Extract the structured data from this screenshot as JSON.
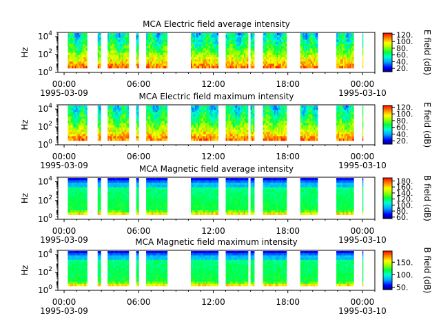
{
  "chart_data": [
    {
      "type": "heatmap",
      "title": "MCA  Electric field average intensity",
      "ylabel": "Hz",
      "ylim": [
        1,
        30000
      ],
      "yscale": "log",
      "yticks": [
        "10^0",
        "10^2",
        "10^4"
      ],
      "xticks": [
        "00:00",
        "06:00",
        "12:00",
        "18:00",
        "00:00"
      ],
      "xdates": [
        "1995-03-09",
        "1995-03-10"
      ],
      "colorbar_label": "E field (dB)",
      "colorbar_ticks": [
        "20.",
        "40.",
        "60.",
        "80.",
        "100.",
        "120."
      ],
      "clim": [
        10,
        125
      ],
      "data_intervals_hours": [
        [
          0.3,
          1.85
        ],
        [
          2.7,
          2.95
        ],
        [
          3.5,
          5.2
        ],
        [
          5.8,
          6.0
        ],
        [
          6.6,
          8.3
        ],
        [
          10.2,
          12.4
        ],
        [
          13.0,
          14.8
        ],
        [
          15.0,
          15.3
        ],
        [
          16.0,
          17.9
        ],
        [
          19.0,
          20.4
        ],
        [
          21.9,
          23.3
        ],
        [
          24.0,
          24.05
        ]
      ],
      "data_freq_range_hz": [
        3,
        25000
      ],
      "palette": "rainbow"
    },
    {
      "type": "heatmap",
      "title": "MCA  Electric field maximum intensity",
      "ylabel": "Hz",
      "ylim": [
        1,
        30000
      ],
      "yscale": "log",
      "yticks": [
        "10^0",
        "10^2",
        "10^4"
      ],
      "xticks": [
        "00:00",
        "06:00",
        "12:00",
        "18:00",
        "00:00"
      ],
      "xdates": [
        "1995-03-09",
        "1995-03-10"
      ],
      "colorbar_label": "E field (dB)",
      "colorbar_ticks": [
        "20.",
        "40.",
        "60.",
        "80.",
        "100.",
        "120."
      ],
      "clim": [
        10,
        125
      ],
      "data_intervals_hours": [
        [
          0.3,
          1.85
        ],
        [
          2.7,
          2.95
        ],
        [
          3.5,
          5.2
        ],
        [
          5.8,
          6.0
        ],
        [
          6.6,
          8.3
        ],
        [
          10.2,
          12.4
        ],
        [
          13.0,
          14.8
        ],
        [
          15.0,
          15.3
        ],
        [
          16.0,
          17.9
        ],
        [
          19.0,
          20.4
        ],
        [
          21.9,
          23.3
        ],
        [
          24.0,
          24.05
        ]
      ],
      "data_freq_range_hz": [
        3,
        25000
      ],
      "palette": "rainbow"
    },
    {
      "type": "heatmap",
      "title": "MCA  Magnetic field average intensity",
      "ylabel": "Hz",
      "ylim": [
        1,
        30000
      ],
      "yscale": "log",
      "yticks": [
        "10^0",
        "10^2",
        "10^4"
      ],
      "xticks": [
        "00:00",
        "06:00",
        "12:00",
        "18:00",
        "00:00"
      ],
      "xdates": [
        "1995-03-09",
        "1995-03-10"
      ],
      "colorbar_label": "B field (dB)",
      "colorbar_ticks": [
        "60.",
        "80.",
        "100.",
        "120.",
        "140.",
        "160.",
        "180."
      ],
      "clim": [
        55,
        190
      ],
      "data_intervals_hours": [
        [
          0.3,
          1.85
        ],
        [
          2.7,
          2.95
        ],
        [
          3.5,
          5.2
        ],
        [
          5.8,
          6.0
        ],
        [
          6.6,
          8.3
        ],
        [
          10.2,
          12.4
        ],
        [
          13.0,
          14.8
        ],
        [
          15.0,
          15.3
        ],
        [
          16.0,
          17.9
        ],
        [
          19.0,
          20.4
        ],
        [
          21.9,
          23.3
        ],
        [
          24.0,
          24.05
        ]
      ],
      "data_freq_range_hz": [
        3,
        25000
      ],
      "palette": "rainbow"
    },
    {
      "type": "heatmap",
      "title": "MCA  Magnetic field maximum intensity",
      "ylabel": "Hz",
      "ylim": [
        1,
        30000
      ],
      "yscale": "log",
      "yticks": [
        "10^0",
        "10^2",
        "10^4"
      ],
      "xticks": [
        "00:00",
        "06:00",
        "12:00",
        "18:00",
        "00:00"
      ],
      "xdates": [
        "1995-03-09",
        "1995-03-10"
      ],
      "colorbar_label": "B field (dB)",
      "colorbar_ticks": [
        "50.",
        "100.",
        "150."
      ],
      "clim": [
        40,
        195
      ],
      "data_intervals_hours": [
        [
          0.3,
          1.85
        ],
        [
          2.7,
          2.95
        ],
        [
          3.5,
          5.2
        ],
        [
          5.8,
          6.0
        ],
        [
          6.6,
          8.3
        ],
        [
          10.2,
          12.4
        ],
        [
          13.0,
          14.8
        ],
        [
          15.0,
          15.3
        ],
        [
          16.0,
          17.9
        ],
        [
          19.0,
          20.4
        ],
        [
          21.9,
          23.3
        ],
        [
          24.0,
          24.05
        ]
      ],
      "data_freq_range_hz": [
        3,
        25000
      ],
      "palette": "rainbow"
    }
  ]
}
